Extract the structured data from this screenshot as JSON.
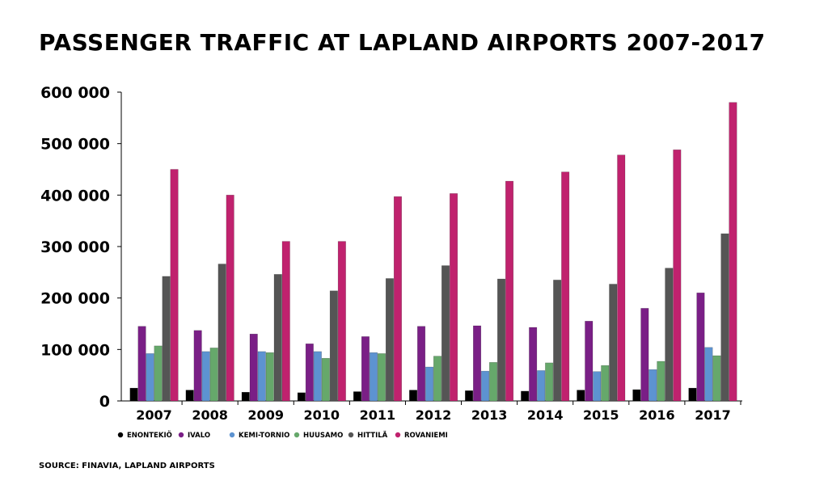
{
  "chart_data": {
    "type": "bar",
    "title": "PASSENGER TRAFFIC AT LAPLAND AIRPORTS  2007-2017",
    "source": "SOURCE: FINAVIA, LAPLAND AIRPORTS",
    "categories": [
      "2007",
      "2008",
      "2009",
      "2010",
      "2011",
      "2012",
      "2013",
      "2014",
      "2015",
      "2016",
      "2017"
    ],
    "ylim": [
      0,
      600000
    ],
    "yticks": [
      {
        "value": 0,
        "label": "0"
      },
      {
        "value": 100000,
        "label": "100 000"
      },
      {
        "value": 200000,
        "label": "200 000"
      },
      {
        "value": 300000,
        "label": "300 000"
      },
      {
        "value": 400000,
        "label": "400 000"
      },
      {
        "value": 500000,
        "label": "500 000"
      },
      {
        "value": 600000,
        "label": "600 000"
      }
    ],
    "grid": false,
    "legend_position": "bottom",
    "series": [
      {
        "name": "ENONTEKIÖ",
        "color": "#000000",
        "values": [
          25000,
          21000,
          17000,
          16000,
          18000,
          21000,
          20000,
          19000,
          21000,
          22000,
          25000
        ]
      },
      {
        "name": "IVALO",
        "color": "#7a1f86",
        "values": [
          145000,
          137000,
          130000,
          111000,
          125000,
          145000,
          146000,
          143000,
          155000,
          180000,
          210000
        ]
      },
      {
        "name": "KEMI-TORNIO",
        "color": "#5d93d1",
        "values": [
          92000,
          96000,
          96000,
          96000,
          94000,
          66000,
          58000,
          59000,
          57000,
          61000,
          104000
        ]
      },
      {
        "name": "HUUSAMO",
        "color": "#66a86b",
        "values": [
          107000,
          103000,
          94000,
          83000,
          92000,
          87000,
          75000,
          74000,
          69000,
          77000,
          88000
        ]
      },
      {
        "name": "HITTILÄ",
        "color": "#555555",
        "values": [
          242000,
          266000,
          246000,
          214000,
          238000,
          263000,
          237000,
          235000,
          227000,
          258000,
          325000
        ]
      },
      {
        "name": "ROVANIEMI",
        "color": "#c0226e",
        "values": [
          450000,
          400000,
          310000,
          310000,
          397000,
          403000,
          427000,
          445000,
          478000,
          488000,
          580000
        ]
      }
    ]
  }
}
